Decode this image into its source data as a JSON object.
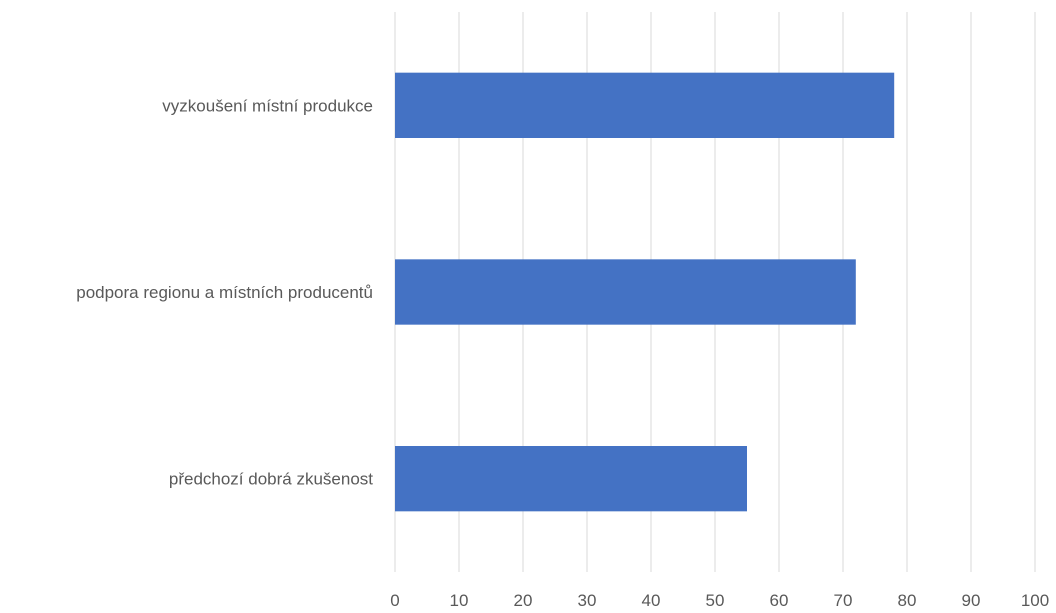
{
  "chart_data": {
    "type": "bar",
    "orientation": "horizontal",
    "title": "",
    "xlabel": "",
    "ylabel": "",
    "categories": [
      "vyzkoušení místní produkce",
      "podpora regionu a místních producentů",
      "předchozí dobrá zkušenost"
    ],
    "values": [
      78,
      72,
      55
    ],
    "xlim": [
      0,
      100
    ],
    "xticks": [
      "0",
      "10",
      "20",
      "30",
      "40",
      "50",
      "60",
      "70",
      "80",
      "90",
      "100"
    ],
    "grid": "vertical",
    "legend": "none",
    "colors": {
      "bar": "#4472C4",
      "grid": "#D9D9D9",
      "text": "#595959",
      "background": "#FFFFFF"
    }
  }
}
